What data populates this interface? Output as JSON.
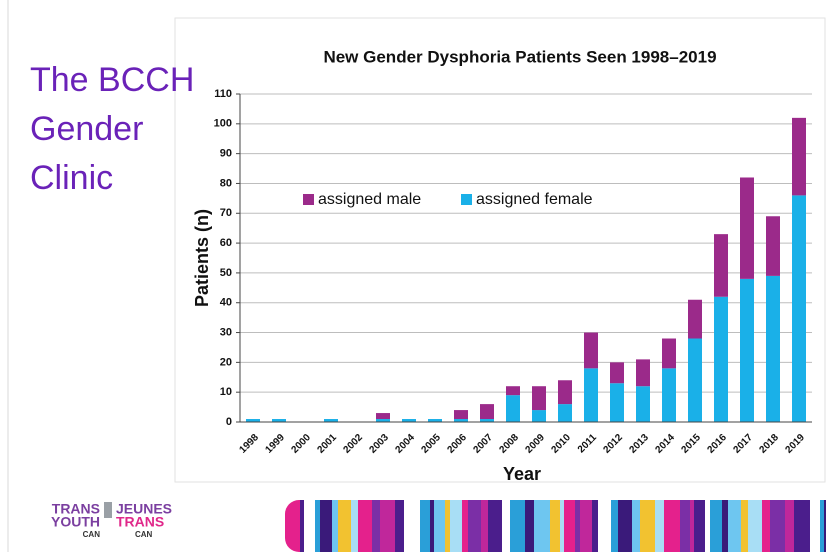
{
  "slide": {
    "title_lines": [
      "The BCCH",
      "Gender",
      "Clinic"
    ]
  },
  "logo": {
    "left": [
      "TRANS",
      "YOUTH",
      "CAN"
    ],
    "right": [
      "JEUNES",
      "TRANS",
      "CAN"
    ]
  },
  "chart_data": {
    "type": "bar",
    "stacked": true,
    "title": "New Gender Dysphoria Patients Seen 1998–2019",
    "x_label": "Year",
    "y_label": "Patients (n)",
    "categories": [
      "1998",
      "1999",
      "2000",
      "2001",
      "2002",
      "2003",
      "2004",
      "2005",
      "2006",
      "2007",
      "2008",
      "2009",
      "2010",
      "2011",
      "2012",
      "2013",
      "2014",
      "2015",
      "2016",
      "2017",
      "2018",
      "2019"
    ],
    "series": [
      {
        "name": "assigned male",
        "color": "#9b2a8a",
        "values": [
          0,
          0,
          0,
          0,
          0,
          2,
          0,
          0,
          3,
          5,
          3,
          8,
          8,
          12,
          7,
          9,
          10,
          13,
          21,
          34,
          20,
          26
        ]
      },
      {
        "name": "assigned female",
        "color": "#1ab0e8",
        "values": [
          1,
          1,
          0,
          1,
          0,
          1,
          1,
          1,
          1,
          1,
          9,
          4,
          6,
          18,
          13,
          12,
          18,
          28,
          42,
          48,
          49,
          76
        ]
      }
    ],
    "ylim": [
      0,
      110
    ],
    "yticks": [
      0,
      10,
      20,
      30,
      40,
      50,
      60,
      70,
      80,
      90,
      100,
      110
    ],
    "grid": true
  }
}
